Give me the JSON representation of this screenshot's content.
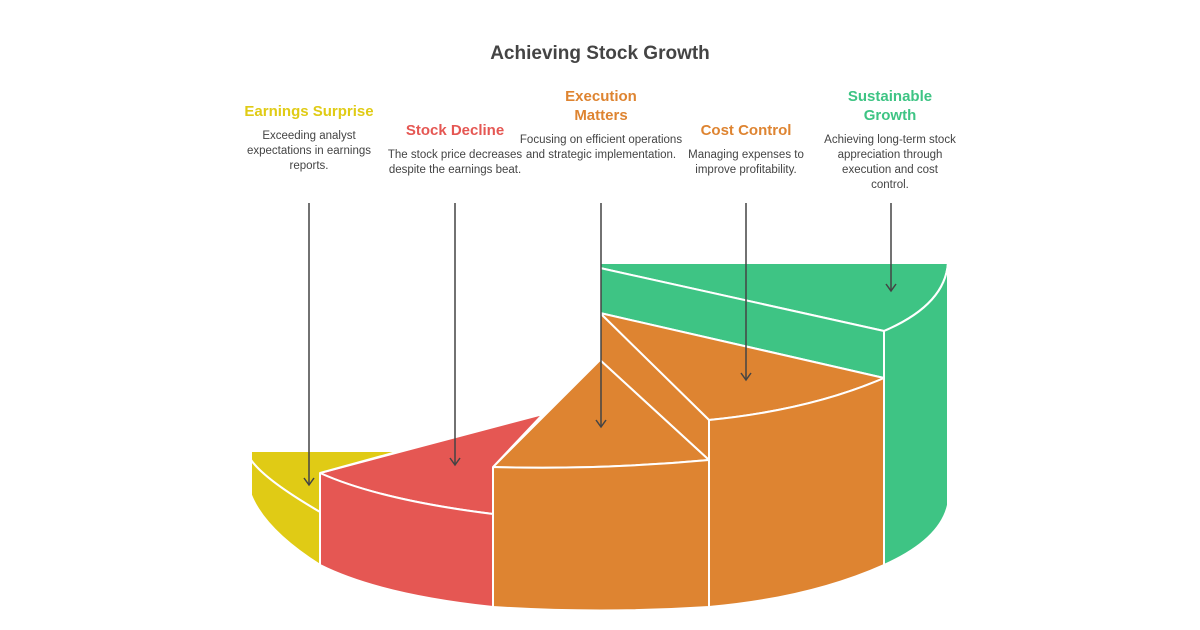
{
  "title": "Achieving Stock Growth",
  "items": [
    {
      "heading": "Earnings Surprise",
      "description": "Exceeding analyst expectations in earnings reports.",
      "color": "#E0CB15"
    },
    {
      "heading": "Stock Decline",
      "description": "The stock price decreases despite the earnings beat.",
      "color": "#E55753"
    },
    {
      "heading": "Execution Matters",
      "description": "Focusing on efficient operations and strategic implementation.",
      "color": "#DE8431"
    },
    {
      "heading": "Cost Control",
      "description": "Managing expenses to improve profitability.",
      "color": "#DE8431"
    },
    {
      "heading": "Sustainable Growth",
      "description": "Achieving long-term stock appreciation through execution and cost control.",
      "color": "#3EC484"
    }
  ]
}
